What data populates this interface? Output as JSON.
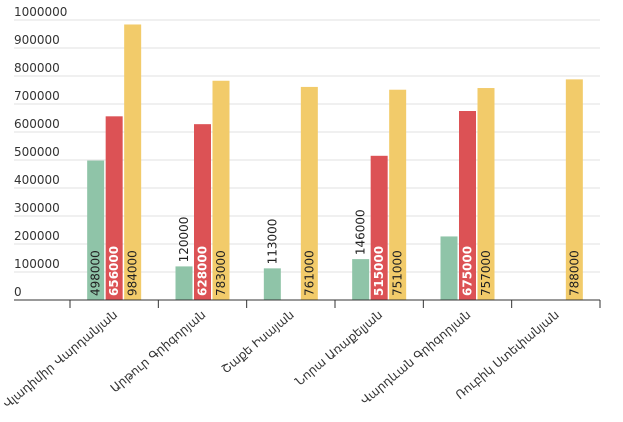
{
  "chart_data": {
    "type": "bar",
    "title": "",
    "xlabel": "",
    "ylabel": "",
    "ylim": [
      0,
      1000000
    ],
    "yticks": [
      0,
      100000,
      200000,
      300000,
      400000,
      500000,
      600000,
      700000,
      800000,
      900000,
      1000000
    ],
    "grid": true,
    "legend": "none",
    "categories": [
      "Վլադիմիր Վարդանյան",
      "Արթուր Գրիգորյան",
      "Շաքե Իսայան",
      "Նորա Առաքելյան",
      "Վարդևան Գրիգորյան",
      "Ռուբիկ Ստեփանյան"
    ],
    "series": [
      {
        "color": "#8fc4a8",
        "values": [
          498000,
          120000,
          113000,
          146000,
          227000,
          0
        ],
        "labels": [
          "498000",
          "120000",
          "113000",
          "146000",
          "",
          ""
        ]
      },
      {
        "color": "#dc5255",
        "values": [
          656000,
          628000,
          0,
          515000,
          675000,
          0
        ],
        "labels": [
          "656000",
          "628000",
          "",
          "515000",
          "675000",
          ""
        ]
      },
      {
        "color": "#f2cb6a",
        "values": [
          984000,
          783000,
          761000,
          751000,
          757000,
          788000
        ],
        "labels": [
          "984000",
          "783000",
          "761000",
          "751000",
          "757000",
          "788000"
        ]
      }
    ]
  }
}
